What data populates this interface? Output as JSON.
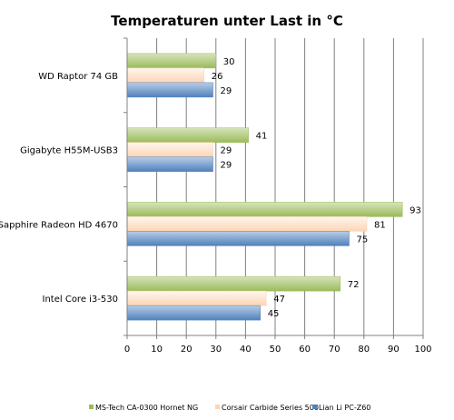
{
  "chart_data": {
    "type": "bar",
    "orientation": "horizontal",
    "title": "Temperaturen unter Last in °C",
    "categories": [
      "WD Raptor 74 GB",
      "Gigabyte H55M-USB3",
      "Sapphire Radeon HD 4670",
      "Intel Core i3-530"
    ],
    "series": [
      {
        "name": "MS-Tech CA-0300 Hornet NG",
        "values": [
          30,
          41,
          93,
          72
        ],
        "color": "#9bbb59",
        "color_light": "#d7e4bd"
      },
      {
        "name": "Corsair Carbide Series 500",
        "values": [
          26,
          29,
          81,
          47
        ],
        "color": "#fcd5b4",
        "color_light": "#fef0e6"
      },
      {
        "name": "Lian Li PC-Z60",
        "values": [
          29,
          29,
          75,
          45
        ],
        "color": "#4f81bd",
        "color_light": "#b9cde5"
      }
    ],
    "xlim": [
      0,
      100
    ],
    "xticks": [
      0,
      10,
      20,
      30,
      40,
      50,
      60,
      70,
      80,
      90,
      100
    ],
    "grid": true,
    "legend": "bottom"
  }
}
